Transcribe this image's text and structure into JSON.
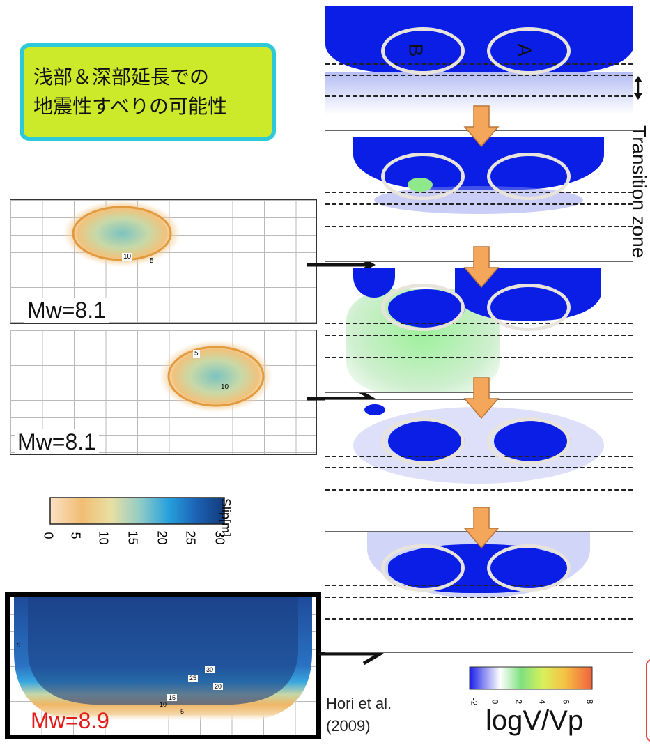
{
  "callout": {
    "line1": "浅部＆深部延長での",
    "line2": "地震性すべりの可能性"
  },
  "slip_maps": [
    {
      "mw": "Mw=8.1",
      "contours": [
        "5",
        "10"
      ]
    },
    {
      "mw": "Mw=8.1",
      "contours": [
        "5",
        "10"
      ]
    },
    {
      "mw": "Mw=8.9",
      "contours": [
        "5",
        "10",
        "15",
        "20",
        "25",
        "30",
        "5"
      ]
    }
  ],
  "slip_colorbar": {
    "label": "Slip[m]",
    "ticks": [
      "0",
      "5",
      "10",
      "15",
      "20",
      "25",
      "30"
    ]
  },
  "simulation": {
    "asperity_labels": [
      "B",
      "A"
    ],
    "transition_label": "Transition zone"
  },
  "velocity_colorbar": {
    "ticks": [
      "-2",
      "0",
      "2",
      "4",
      "6",
      "8"
    ],
    "label": "logV/Vp"
  },
  "citation": {
    "line1": "Hori et al.",
    "line2": "(2009)"
  },
  "colors": {
    "callout_fill": "#cdea2a",
    "callout_border": "#2ec9d8",
    "locked_blue": "#0a1ee6",
    "slipping_green": "#8fe88a",
    "arrow_orange": "#f4a65a",
    "mw_highlight": "#e21b1b"
  }
}
